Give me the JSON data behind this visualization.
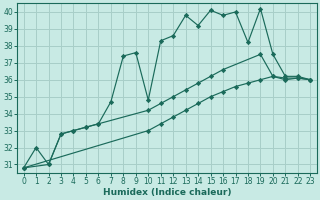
{
  "xlabel": "Humidex (Indice chaleur)",
  "ylim": [
    30.5,
    40.5
  ],
  "xlim": [
    -0.5,
    23.5
  ],
  "yticks": [
    31,
    32,
    33,
    34,
    35,
    36,
    37,
    38,
    39,
    40
  ],
  "xticks": [
    0,
    1,
    2,
    3,
    4,
    5,
    6,
    7,
    8,
    9,
    10,
    11,
    12,
    13,
    14,
    15,
    16,
    17,
    18,
    19,
    20,
    21,
    22,
    23
  ],
  "bg_color": "#c8eae4",
  "grid_color": "#a8cec8",
  "line_color": "#1a6a5a",
  "series1": [
    30.8,
    32.0,
    31.0,
    32.8,
    33.0,
    33.2,
    33.4,
    34.7,
    37.4,
    37.6,
    34.8,
    38.3,
    38.6,
    39.8,
    39.2,
    40.1,
    39.8,
    40.0,
    38.2,
    40.2,
    37.5,
    36.2,
    36.2,
    36.0
  ],
  "series2_x": [
    0,
    2,
    3,
    4,
    5,
    6,
    10,
    11,
    12,
    13,
    14,
    15,
    16,
    19,
    20,
    21,
    22,
    23
  ],
  "series2_y": [
    30.8,
    31.0,
    32.8,
    33.0,
    33.2,
    33.4,
    34.2,
    34.6,
    35.0,
    35.4,
    35.8,
    36.2,
    36.6,
    37.5,
    36.2,
    36.0,
    36.1,
    36.0
  ],
  "series3_x": [
    0,
    10,
    11,
    12,
    13,
    14,
    15,
    16,
    17,
    18,
    19,
    20,
    21,
    22,
    23
  ],
  "series3_y": [
    30.8,
    33.0,
    33.4,
    33.8,
    34.2,
    34.6,
    35.0,
    35.3,
    35.6,
    35.8,
    36.0,
    36.2,
    36.1,
    36.1,
    36.0
  ]
}
